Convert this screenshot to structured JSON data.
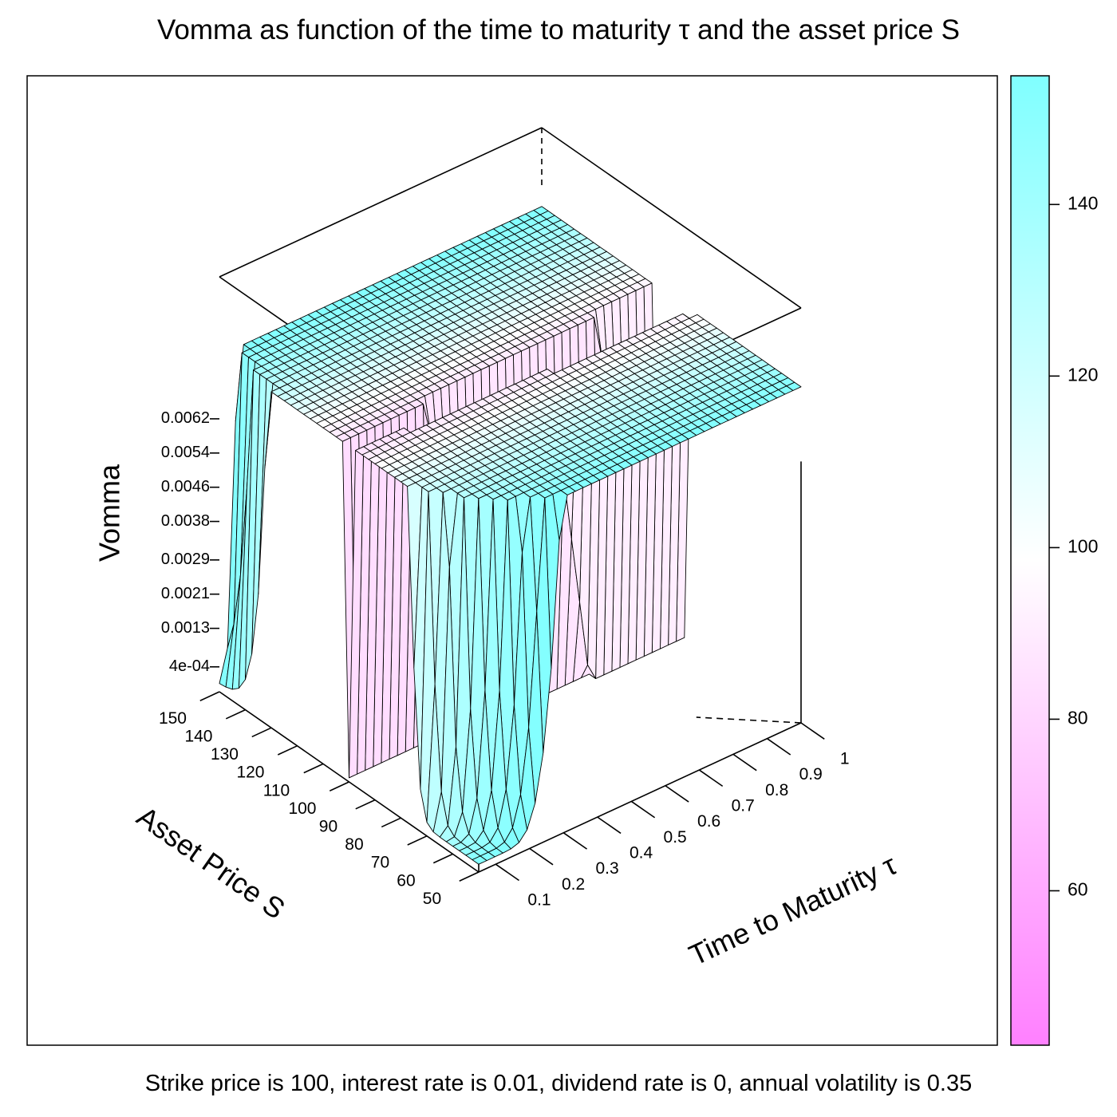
{
  "title": "Vomma as function of the time to maturity τ and the asset price S",
  "caption": "Strike price is 100, interest rate is 0.01, dividend rate is 0, annual volatility is 0.35",
  "chart_data": {
    "type": "surface",
    "title": "Vomma as function of the time to maturity τ and the asset price S",
    "zlabel": "Vomma",
    "xlabel": "Time to Maturity  τ",
    "ylabel": "Asset Price S",
    "x_ticks": [
      "0.1",
      "0.2",
      "0.3",
      "0.4",
      "0.5",
      "0.6",
      "0.7",
      "0.8",
      "0.9",
      "1"
    ],
    "y_ticks": [
      "50",
      "60",
      "70",
      "80",
      "90",
      "100",
      "110",
      "120",
      "130",
      "140",
      "150"
    ],
    "z_ticks": [
      "4e-04",
      "0.0013",
      "0.0021",
      "0.0029",
      "0.0038",
      "0.0046",
      "0.0054",
      "0.0062"
    ],
    "xlim": [
      0.05,
      1
    ],
    "ylim": [
      50,
      150
    ],
    "zlim": [
      0.0004,
      0.0069
    ],
    "colorbar": {
      "ticks": [
        "60",
        "80",
        "100",
        "120",
        "140"
      ],
      "range": [
        42,
        155
      ],
      "low_color": "#ff80ff",
      "mid_color": "#ffffff",
      "high_color": "#80ffff"
    },
    "parameters": {
      "strike": 100,
      "interest_rate": 0.01,
      "dividend_rate": 0,
      "volatility": 0.35
    }
  }
}
